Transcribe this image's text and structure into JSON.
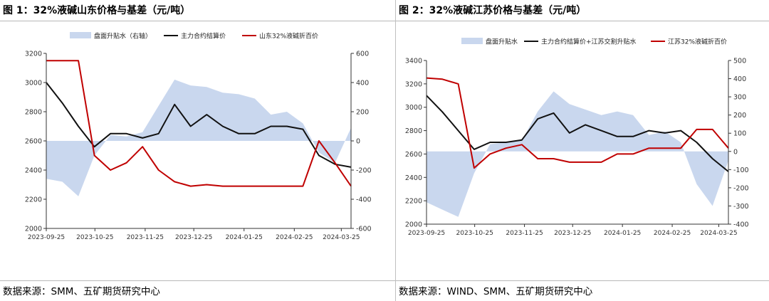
{
  "left": {
    "figure_title": "图 1：32%液碱山东价格与基差（元/吨）",
    "source": "数据来源：SMM、五矿期货研究中心"
  },
  "right": {
    "figure_title": "图 2：32%液碱江苏价格与基差（元/吨）",
    "source": "数据来源：WIND、SMM、五矿期货研究中心"
  },
  "colors": {
    "basis": "#c9d7ee",
    "settle": "#111111",
    "spot": "#c00000",
    "axis": "#333333"
  },
  "chart_data": [
    {
      "type": "line",
      "title": "",
      "x": [
        "2023-09-25",
        "2023-10-05",
        "2023-10-15",
        "2023-10-25",
        "2023-11-05",
        "2023-11-15",
        "2023-11-25",
        "2023-12-05",
        "2023-12-15",
        "2023-12-25",
        "2024-01-05",
        "2024-01-15",
        "2024-01-25",
        "2024-02-05",
        "2024-02-15",
        "2024-02-25",
        "2024-03-05",
        "2024-03-15",
        "2024-03-25",
        "2024-03-31"
      ],
      "x_tick_labels": [
        "2023-09-25",
        "2023-10-25",
        "2023-11-25",
        "2023-12-25",
        "2024-01-25",
        "2024-02-25",
        "2024-03-25"
      ],
      "ylim_left": [
        2000,
        3200
      ],
      "yticks_left": [
        2000,
        2200,
        2400,
        2600,
        2800,
        3000,
        3200
      ],
      "ylim_right": [
        -600,
        600
      ],
      "yticks_right": [
        -600,
        -400,
        -200,
        0,
        200,
        400,
        600
      ],
      "legend": [
        "盘面升贴水（右轴）",
        "主力合约结算价",
        "山东32%液碱折百价"
      ],
      "legend_position": "top",
      "grid": false,
      "series": [
        {
          "name": "盘面升贴水（右轴）",
          "kind": "area",
          "axis": "right",
          "values": [
            -260,
            -280,
            -380,
            -100,
            40,
            30,
            60,
            240,
            420,
            380,
            370,
            330,
            320,
            290,
            180,
            200,
            120,
            -80,
            -150,
            90
          ]
        },
        {
          "name": "主力合约结算价",
          "kind": "line",
          "axis": "left",
          "values": [
            3000,
            2860,
            2700,
            2560,
            2650,
            2650,
            2620,
            2650,
            2850,
            2700,
            2780,
            2700,
            2650,
            2650,
            2700,
            2700,
            2680,
            2500,
            2440,
            2420
          ]
        },
        {
          "name": "山东32%液碱折百价",
          "kind": "line",
          "axis": "left",
          "values": [
            3150,
            3150,
            3150,
            2500,
            2400,
            2450,
            2560,
            2400,
            2320,
            2290,
            2300,
            2290,
            2290,
            2290,
            2290,
            2290,
            2290,
            2600,
            2450,
            2290
          ]
        }
      ]
    },
    {
      "type": "line",
      "title": "",
      "x": [
        "2023-09-25",
        "2023-10-05",
        "2023-10-15",
        "2023-10-25",
        "2023-11-05",
        "2023-11-15",
        "2023-11-25",
        "2023-12-05",
        "2023-12-15",
        "2023-12-25",
        "2024-01-05",
        "2024-01-15",
        "2024-01-25",
        "2024-02-05",
        "2024-02-15",
        "2024-02-25",
        "2024-03-05",
        "2024-03-15",
        "2024-03-25",
        "2024-03-31"
      ],
      "x_tick_labels": [
        "2023-09-25",
        "2023-10-25",
        "2023-11-25",
        "2023-12-25",
        "2024-01-25",
        "2024-02-25",
        "2024-03-25"
      ],
      "ylim_left": [
        2000,
        3400
      ],
      "yticks_left": [
        2000,
        2200,
        2400,
        2600,
        2800,
        3000,
        3200,
        3400
      ],
      "ylim_right": [
        -400,
        500
      ],
      "yticks_right": [
        -400,
        -300,
        -200,
        -100,
        0,
        100,
        200,
        300,
        400,
        500
      ],
      "legend": [
        "盘面升贴水",
        "主力合约结算价+江苏交割升贴水",
        "江苏32%液碱折百价"
      ],
      "legend_position": "top",
      "grid": false,
      "series": [
        {
          "name": "盘面升贴水",
          "kind": "area",
          "axis": "right",
          "values": [
            -280,
            -320,
            -360,
            -120,
            40,
            50,
            60,
            220,
            330,
            260,
            230,
            200,
            220,
            200,
            90,
            110,
            50,
            -180,
            -300,
            -50
          ]
        },
        {
          "name": "主力合约结算价+江苏交割升贴水",
          "kind": "line",
          "axis": "left",
          "values": [
            3100,
            2960,
            2800,
            2640,
            2700,
            2700,
            2720,
            2900,
            2950,
            2780,
            2850,
            2800,
            2750,
            2750,
            2800,
            2780,
            2800,
            2700,
            2560,
            2450
          ]
        },
        {
          "name": "江苏32%液碱折百价",
          "kind": "line",
          "axis": "left",
          "values": [
            3250,
            3240,
            3200,
            2480,
            2600,
            2650,
            2680,
            2560,
            2560,
            2530,
            2530,
            2530,
            2600,
            2600,
            2650,
            2650,
            2650,
            2810,
            2810,
            2650
          ]
        }
      ]
    }
  ]
}
